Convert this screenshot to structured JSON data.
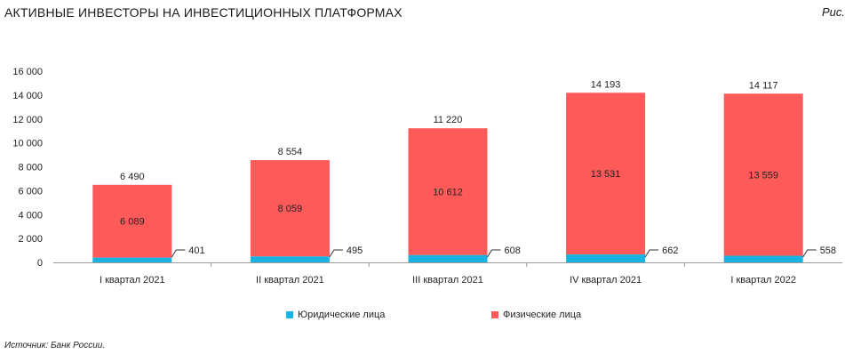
{
  "title": "АКТИВНЫЕ ИНВЕСТОРЫ НА ИНВЕСТИЦИОННЫХ ПЛАТФОРМАХ",
  "figure_ref": "Рис.",
  "source": "Источник: Банк России.",
  "colors": {
    "legal": "#1ab2e0",
    "individual": "#ff5a5a",
    "axis": "#9a9a9a"
  },
  "legend": {
    "legal": "Юридические лица",
    "individual": "Физические лица"
  },
  "chart_data": {
    "type": "bar",
    "stacked": true,
    "categories": [
      "I квартал 2021",
      "II квартал 2021",
      "III квартал 2021",
      "IV  квартал 2021",
      "I квартал 2022"
    ],
    "series": [
      {
        "name": "Юридические лица",
        "values": [
          401,
          495,
          608,
          662,
          558
        ]
      },
      {
        "name": "Физические лица",
        "values": [
          6089,
          8059,
          10612,
          13531,
          13559
        ]
      }
    ],
    "totals": [
      6490,
      8554,
      11220,
      14193,
      14117
    ],
    "labels": {
      "legal": [
        "401",
        "495",
        "608",
        "662",
        "558"
      ],
      "individual": [
        "6 089",
        "8 059",
        "10 612",
        "13 531",
        "13 559"
      ],
      "total": [
        "6 490",
        "8 554",
        "11 220",
        "14 193",
        "14 117"
      ]
    },
    "ylim": [
      0,
      16000
    ],
    "yticks": [
      0,
      2000,
      4000,
      6000,
      8000,
      10000,
      12000,
      14000,
      16000
    ],
    "ytick_labels": [
      "0",
      "2 000",
      "4 000",
      "6 000",
      "8 000",
      "10 000",
      "12 000",
      "14 000",
      "16 000"
    ],
    "grid": false,
    "legend_position": "bottom"
  }
}
